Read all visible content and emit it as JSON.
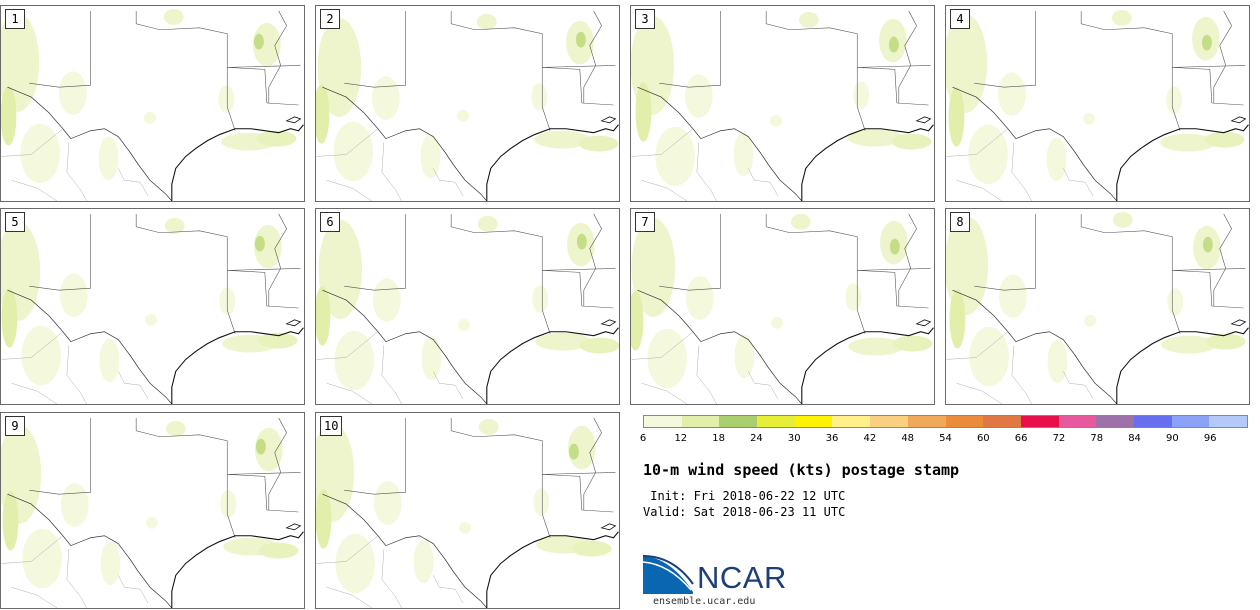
{
  "panels": [
    {
      "label": "1"
    },
    {
      "label": "2"
    },
    {
      "label": "3"
    },
    {
      "label": "4"
    },
    {
      "label": "5"
    },
    {
      "label": "6"
    },
    {
      "label": "7"
    },
    {
      "label": "8"
    },
    {
      "label": "9"
    },
    {
      "label": "10"
    }
  ],
  "legend": {
    "colors": [
      "#f4f8dc",
      "#e1efaa",
      "#a9cf6e",
      "#e5ef36",
      "#fff200",
      "#fff08a",
      "#f9d080",
      "#f0a85a",
      "#ea8c3c",
      "#e07844",
      "#e8104a",
      "#e8589c",
      "#9c72a8",
      "#6670ee",
      "#8aa2f8",
      "#b4c8fa"
    ],
    "tick_labels": [
      "6",
      "12",
      "18",
      "24",
      "30",
      "36",
      "42",
      "48",
      "54",
      "60",
      "66",
      "72",
      "78",
      "84",
      "90",
      "96"
    ]
  },
  "title": "10-m wind speed (kts) postage stamp",
  "init": " Init: Fri 2018-06-22 12 UTC",
  "valid": "Valid: Sat 2018-06-23 11 UTC",
  "logo": {
    "text": "NCAR",
    "site": "ensemble.ucar.edu",
    "colors": [
      "#0a66b0",
      "#1c3f77"
    ]
  }
}
